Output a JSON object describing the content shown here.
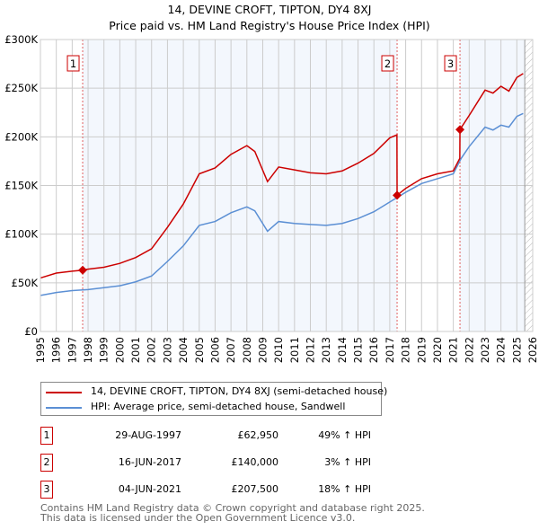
{
  "chart_data": {
    "type": "line",
    "title": "14, DEVINE CROFT, TIPTON, DY4 8XJ",
    "subtitle": "Price paid vs. HM Land Registry's House Price Index (HPI)",
    "xlim": [
      1995,
      2026
    ],
    "ylim": [
      0,
      300000
    ],
    "x_ticks": [
      "1995",
      "1996",
      "1997",
      "1998",
      "1999",
      "2000",
      "2001",
      "2002",
      "2003",
      "2004",
      "2005",
      "2006",
      "2007",
      "2008",
      "2009",
      "2010",
      "2011",
      "2012",
      "2013",
      "2014",
      "2015",
      "2016",
      "2017",
      "2018",
      "2019",
      "2020",
      "2021",
      "2022",
      "2023",
      "2024",
      "2025",
      "2026"
    ],
    "y_ticks": [
      {
        "v": 0,
        "label": "£0"
      },
      {
        "v": 50000,
        "label": "£50K"
      },
      {
        "v": 100000,
        "label": "£100K"
      },
      {
        "v": 150000,
        "label": "£150K"
      },
      {
        "v": 200000,
        "label": "£200K"
      },
      {
        "v": 250000,
        "label": "£250K"
      },
      {
        "v": 300000,
        "label": "£300K"
      }
    ],
    "grid": true,
    "series": [
      {
        "name": "14, DEVINE CROFT, TIPTON, DY4 8XJ (semi-detached house)",
        "color": "#cc0000",
        "x": [
          1995,
          1996,
          1997,
          1997.66,
          1998,
          1999,
          2000,
          2001,
          2002,
          2003,
          2004,
          2005,
          2006,
          2007,
          2008,
          2008.5,
          2009.3,
          2010,
          2011,
          2012,
          2013,
          2014,
          2015,
          2016,
          2017,
          2017.45,
          2017.46,
          2018,
          2019,
          2020,
          2021,
          2021.41,
          2021.42,
          2022,
          2023,
          2023.5,
          2024,
          2024.5,
          2025,
          2025.4
        ],
        "y": [
          55000,
          60000,
          62000,
          62950,
          64000,
          66000,
          70000,
          76000,
          85000,
          107000,
          131000,
          162000,
          168000,
          182000,
          191000,
          185000,
          154000,
          169000,
          166000,
          163000,
          162000,
          165000,
          173000,
          183000,
          199000,
          202000,
          140000,
          147000,
          157000,
          162000,
          165000,
          178000,
          207500,
          222000,
          248000,
          245000,
          252000,
          247000,
          261000,
          265000
        ]
      },
      {
        "name": "HPI: Average price, semi-detached house, Sandwell",
        "color": "#5b8fd4",
        "x": [
          1995,
          1996,
          1997,
          1998,
          1999,
          2000,
          2001,
          2002,
          2003,
          2004,
          2005,
          2006,
          2007,
          2008,
          2008.5,
          2009.3,
          2010,
          2011,
          2012,
          2013,
          2014,
          2015,
          2016,
          2017,
          2018,
          2019,
          2020,
          2021,
          2021.5,
          2022,
          2023,
          2023.5,
          2024,
          2024.5,
          2025,
          2025.4
        ],
        "y": [
          37000,
          40000,
          42000,
          43000,
          45000,
          47000,
          51000,
          57000,
          72000,
          88000,
          109000,
          113000,
          122000,
          128000,
          124000,
          103000,
          113000,
          111000,
          110000,
          109000,
          111000,
          116000,
          123000,
          133000,
          143000,
          152000,
          157000,
          162000,
          178000,
          190000,
          210000,
          207000,
          212000,
          210000,
          221000,
          224000
        ]
      }
    ],
    "sales": [
      {
        "num": "1",
        "x": 1997.66,
        "price": 62950,
        "date": "29-AUG-1997",
        "price_label": "£62,950",
        "hpi": "49% ↑ HPI"
      },
      {
        "num": "2",
        "x": 2017.46,
        "price": 140000,
        "date": "16-JUN-2017",
        "price_label": "£140,000",
        "hpi": "3% ↑ HPI"
      },
      {
        "num": "3",
        "x": 2021.42,
        "price": 207500,
        "date": "04-JUN-2021",
        "price_label": "£207,500",
        "hpi": "18% ↑ HPI"
      }
    ],
    "legend_placement": "bottom"
  },
  "footer": [
    "Contains HM Land Registry data © Crown copyright and database right 2025.",
    "This data is licensed under the Open Government Licence v3.0."
  ]
}
